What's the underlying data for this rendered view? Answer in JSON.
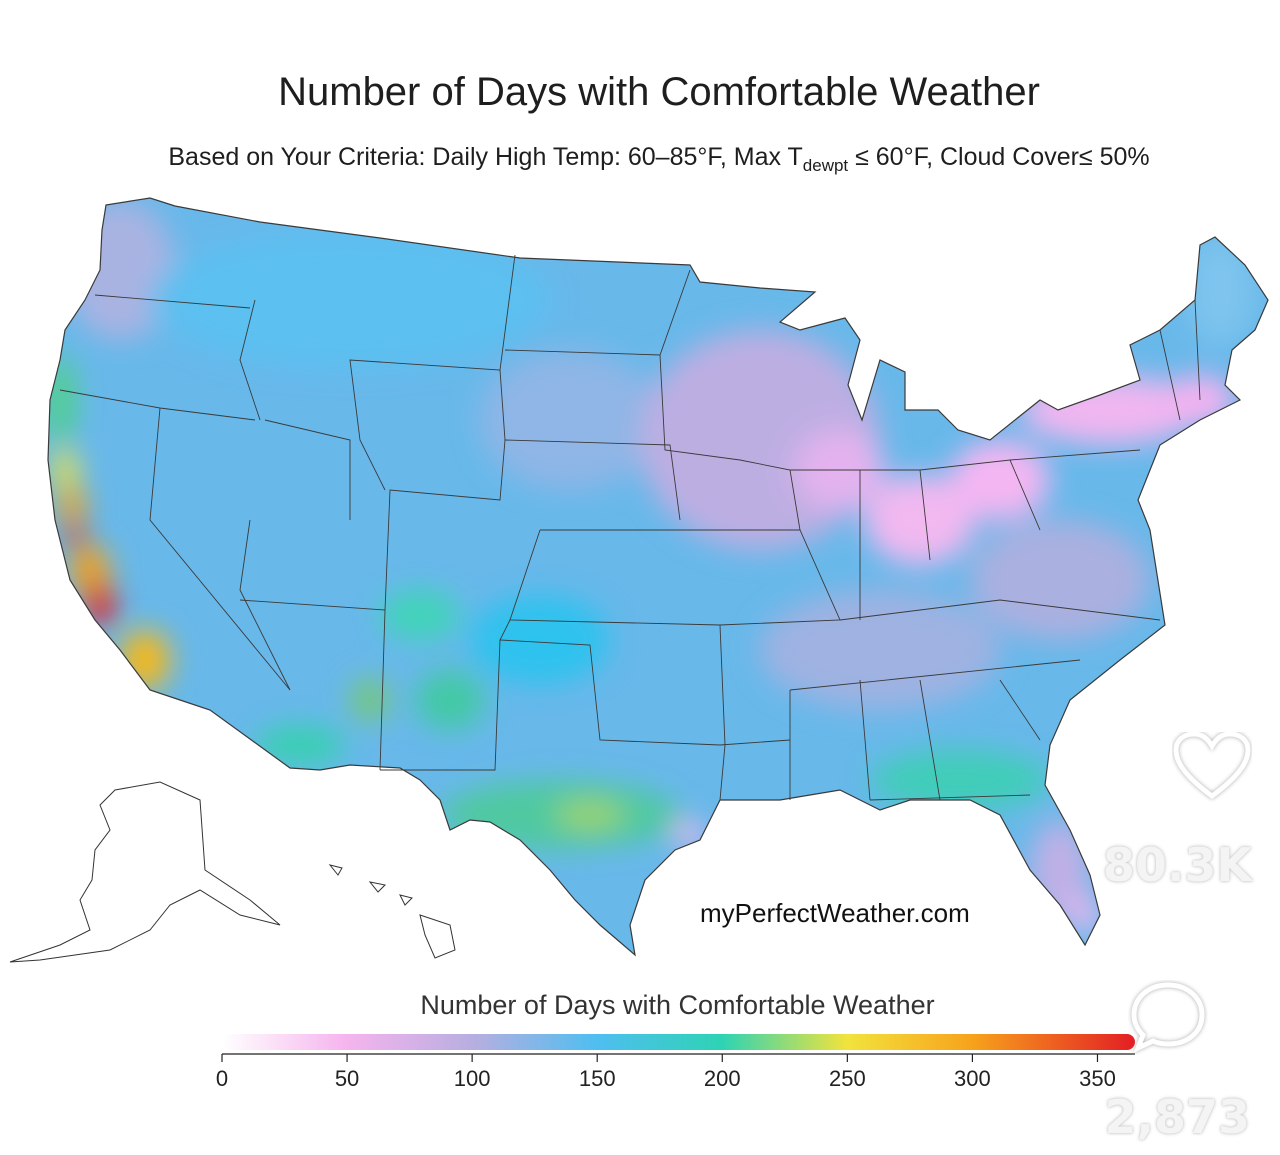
{
  "map": {
    "title": "Number of Days with Comfortable Weather",
    "subtitle_main": "Based on Your Criteria: Daily High Temp: 60–85°F, Max T",
    "subtitle_sub": "dewpt",
    "subtitle_rest": " ≤ 60°F, Cloud Cover≤ 50%",
    "watermark": "myPerfectWeather.com",
    "region": "Contiguous United States, Alaska, Hawaii",
    "colors": {
      "low_0": "#ffffff",
      "pink_50": "#f5b4ee",
      "lavender_100": "#b8aee0",
      "blue_150": "#4fbef0",
      "teal_200": "#2ed3b4",
      "yellow_250": "#f2e33c",
      "orange_300": "#f7a21c",
      "red_350": "#e31e24"
    }
  },
  "legend": {
    "title": "Number of Days with Comfortable Weather",
    "ticks": [
      "0",
      "50",
      "100",
      "150",
      "200",
      "250",
      "300",
      "350"
    ],
    "range": [
      0,
      365
    ]
  },
  "social": {
    "like_icon": "heart-icon",
    "likes": "80.3K",
    "comment_icon": "comment-bubble-icon",
    "comments": "2,873"
  }
}
